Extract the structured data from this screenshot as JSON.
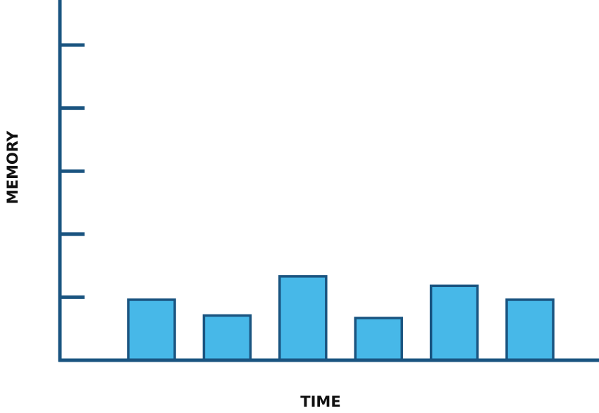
{
  "chart_data": {
    "type": "bar",
    "title": "",
    "xlabel": "TIME",
    "ylabel": "MEMORY",
    "categories": [
      "",
      "",
      "",
      "",
      "",
      ""
    ],
    "values": [
      0.96,
      0.71,
      1.33,
      0.67,
      1.18,
      0.96
    ],
    "ylim": [
      0,
      5.7
    ],
    "yticks": [
      1,
      2,
      3,
      4,
      5
    ],
    "ytick_labels_shown": false,
    "grid": false,
    "colors": {
      "bar_fill": "#47b8e8",
      "bar_stroke": "#1a5480",
      "axis": "#1a5480"
    }
  }
}
